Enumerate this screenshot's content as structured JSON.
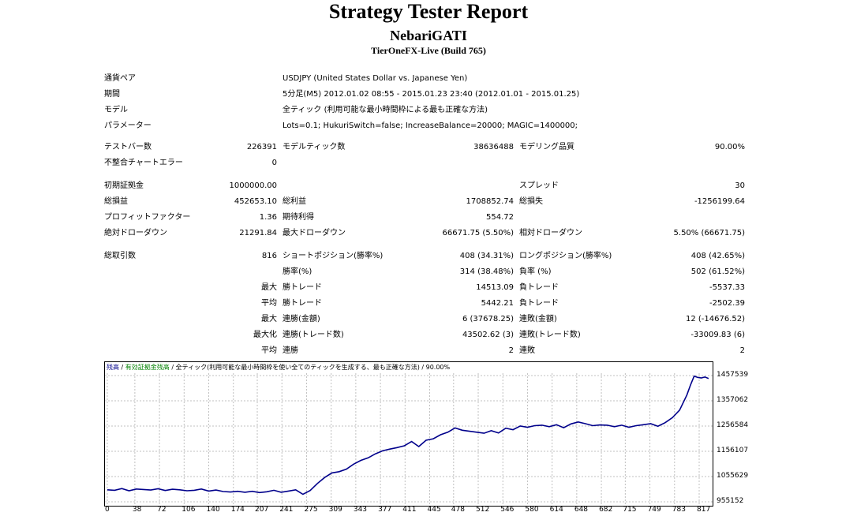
{
  "header": {
    "title": "Strategy Tester Report",
    "ea_name": "NebariGATI",
    "server": "TierOneFX-Live (Build 765)"
  },
  "info": [
    {
      "label": "通貨ペア",
      "value": "USDJPY (United States Dollar vs. Japanese Yen)"
    },
    {
      "label": "期間",
      "value": "5分足(M5) 2012.01.02 08:55 - 2015.01.23 23:40 (2012.01.01 - 2015.01.25)"
    },
    {
      "label": "モデル",
      "value": "全ティック (利用可能な最小時間枠による最も正確な方法)"
    },
    {
      "label": "パラメーター",
      "value": "Lots=0.1; HukuriSwitch=false; IncreaseBalance=20000; MAGIC=1400000;"
    }
  ],
  "stats": {
    "bars_label": "テストバー数",
    "bars": "226391",
    "ticks_label": "モデルティック数",
    "ticks": "38636488",
    "quality_label": "モデリング品質",
    "quality": "90.00%",
    "mismatch_label": "不整合チャートエラー",
    "mismatch": "0",
    "deposit_label": "初期証拠金",
    "deposit": "1000000.00",
    "spread_label": "スプレッド",
    "spread": "30",
    "net_label": "総損益",
    "net": "452653.10",
    "gross_profit_label": "総利益",
    "gross_profit": "1708852.74",
    "gross_loss_label": "総損失",
    "gross_loss": "-1256199.64",
    "pf_label": "プロフィットファクター",
    "pf": "1.36",
    "expected_label": "期待利得",
    "expected": "554.72",
    "abs_dd_label": "絶対ドローダウン",
    "abs_dd": "21291.84",
    "max_dd_label": "最大ドローダウン",
    "max_dd": "66671.75 (5.50%)",
    "rel_dd_label": "相対ドローダウン",
    "rel_dd": "5.50% (66671.75)",
    "total_trades_label": "総取引数",
    "total_trades": "816",
    "short_label": "ショートポジション(勝率%)",
    "short": "408 (34.31%)",
    "long_label": "ロングポジション(勝率%)",
    "long": "408 (42.65%)",
    "win_pct_label": "勝率(%)",
    "win_pct": "314 (38.48%)",
    "loss_pct_label": "負率 (%)",
    "loss_pct": "502 (61.52%)",
    "largest_label": "最大",
    "largest_win_label": "勝トレード",
    "largest_win": "14513.09",
    "largest_loss_label": "負トレード",
    "largest_loss": "-5537.33",
    "average_label": "平均",
    "average_win_label": "勝トレード",
    "average_win": "5442.21",
    "average_loss_label": "負トレード",
    "average_loss": "-2502.39",
    "max_label": "最大",
    "max_cons_wins_label": "連勝(金額)",
    "max_cons_wins": "6 (37678.25)",
    "max_cons_losses_label": "連敗(金額)",
    "max_cons_losses": "12 (-14676.52)",
    "maximal_label": "最大化",
    "maximal_cons_profit_label": "連勝(トレード数)",
    "maximal_cons_profit": "43502.62 (3)",
    "maximal_cons_loss_label": "連敗(トレード数)",
    "maximal_cons_loss": "-33009.83 (6)",
    "avg_cons_label": "平均",
    "avg_cons_wins_label": "連勝",
    "avg_cons_wins": "2",
    "avg_cons_losses_label": "連敗",
    "avg_cons_losses": "2"
  },
  "graph": {
    "title_balance": "残高",
    "title_sep1": " / ",
    "title_equity": "有効証拠金残高",
    "title_rest": " / 全ティック(利用可能な最小時間枠を使い全てのティックを生成する、最も正確な方法) / 90.00%",
    "balance_color": "#00008b",
    "equity_color": "#008000",
    "grid_color": "#c0c0c0"
  },
  "chart_data": {
    "type": "line",
    "y_ticks": [
      "1457539",
      "1357062",
      "1256584",
      "1156107",
      "1055629",
      "955152"
    ],
    "x_ticks": [
      "0",
      "38",
      "72",
      "106",
      "140",
      "174",
      "207",
      "241",
      "275",
      "309",
      "343",
      "377",
      "411",
      "445",
      "478",
      "512",
      "546",
      "580",
      "614",
      "648",
      "682",
      "715",
      "749",
      "783",
      "817"
    ],
    "ylim": [
      955152,
      1478000
    ],
    "xlim": [
      0,
      832
    ],
    "series": [
      {
        "x": [
          0,
          10,
          20,
          30,
          40,
          50,
          60,
          70,
          80,
          90,
          100,
          110,
          120,
          130,
          140,
          150,
          160,
          170,
          180,
          190,
          200,
          210,
          220,
          230,
          240,
          250,
          260,
          270,
          280,
          290,
          300,
          310,
          320,
          330,
          340,
          350,
          360,
          370,
          380,
          390,
          400,
          410,
          420,
          430,
          440,
          450,
          460,
          470,
          480,
          490,
          500,
          510,
          520,
          530,
          540,
          550,
          560,
          570,
          580,
          590,
          600,
          610,
          620,
          630,
          640,
          650,
          660,
          670,
          680,
          690,
          700,
          710,
          720,
          730,
          740,
          750,
          760,
          770,
          780,
          790,
          800,
          805,
          810,
          815,
          820,
          825,
          830
        ],
        "y": [
          1003000,
          1001000,
          1008000,
          999000,
          1006000,
          1004000,
          1002000,
          1007000,
          1000000,
          1005000,
          1003000,
          999000,
          1001000,
          1006000,
          998000,
          1002000,
          996000,
          994000,
          997000,
          993000,
          997000,
          992000,
          995000,
          1001000,
          993000,
          998000,
          1003000,
          985000,
          1000000,
          1028000,
          1052000,
          1070000,
          1075000,
          1085000,
          1105000,
          1120000,
          1130000,
          1146000,
          1158000,
          1165000,
          1171000,
          1178000,
          1195000,
          1175000,
          1200000,
          1206000,
          1222000,
          1232000,
          1249000,
          1240000,
          1236000,
          1232000,
          1228000,
          1238000,
          1229000,
          1248000,
          1242000,
          1257000,
          1252000,
          1258000,
          1260000,
          1254000,
          1262000,
          1250000,
          1265000,
          1273000,
          1266000,
          1258000,
          1261000,
          1260000,
          1254000,
          1260000,
          1252000,
          1258000,
          1262000,
          1266000,
          1256000,
          1270000,
          1290000,
          1320000,
          1380000,
          1420000,
          1455000,
          1450000,
          1448000,
          1452000,
          1446000
        ]
      }
    ]
  }
}
